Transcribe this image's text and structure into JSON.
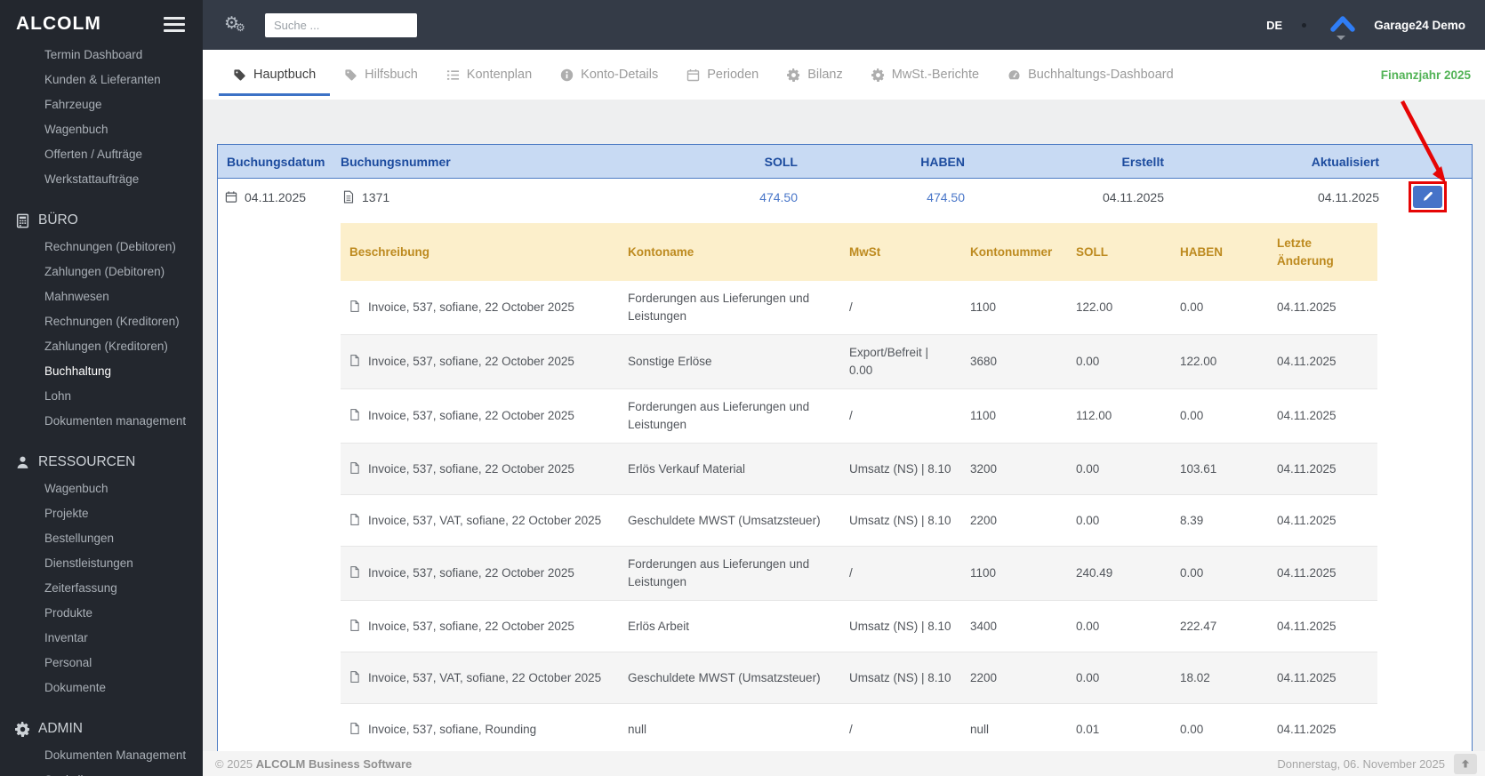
{
  "sidebar": {
    "logo": "ALCOLM",
    "top_items": [
      "Termin Dashboard",
      "Kunden & Lieferanten",
      "Fahrzeuge",
      "Wagenbuch",
      "Offerten / Aufträge",
      "Werkstattaufträge"
    ],
    "sections": [
      {
        "label": "BÜRO",
        "icon": "calculator-icon",
        "items": [
          "Rechnungen (Debitoren)",
          "Zahlungen (Debitoren)",
          "Mahnwesen",
          "Rechnungen (Kreditoren)",
          "Zahlungen (Kreditoren)",
          "Buchhaltung",
          "Lohn",
          "Dokumenten management"
        ],
        "active_item": "Buchhaltung"
      },
      {
        "label": "RESSOURCEN",
        "icon": "user-icon",
        "items": [
          "Wagenbuch",
          "Projekte",
          "Bestellungen",
          "Dienstleistungen",
          "Zeiterfassung",
          "Produkte",
          "Inventar",
          "Personal",
          "Dokumente"
        ]
      },
      {
        "label": "ADMIN",
        "icon": "gear-icon",
        "items": [
          "Dokumenten Management",
          "Statistik"
        ]
      }
    ]
  },
  "topbar": {
    "search_placeholder": "Suche ...",
    "language": "DE",
    "account_name": "Garage24 Demo"
  },
  "tabbar": {
    "tabs": [
      {
        "label": "Hauptbuch",
        "icon": "tag-icon",
        "active": true
      },
      {
        "label": "Hilfsbuch",
        "icon": "tag-icon",
        "active": false
      },
      {
        "label": "Kontenplan",
        "icon": "list-icon",
        "active": false
      },
      {
        "label": "Konto-Details",
        "icon": "info-icon",
        "active": false
      },
      {
        "label": "Perioden",
        "icon": "calendar-icon",
        "active": false
      },
      {
        "label": "Bilanz",
        "icon": "gear-icon",
        "active": false
      },
      {
        "label": "MwSt.-Berichte",
        "icon": "gear-icon",
        "active": false
      },
      {
        "label": "Buchhaltungs-Dashboard",
        "icon": "dashboard-icon",
        "active": false
      }
    ],
    "fiscal_year": "Finanzjahr 2025"
  },
  "ledger": {
    "headers": {
      "date": "Buchungsdatum",
      "number": "Buchungsnummer",
      "debit": "SOLL",
      "credit": "HABEN",
      "created": "Erstellt",
      "updated": "Aktualisiert"
    },
    "entry": {
      "date": "04.11.2025",
      "number": "1371",
      "debit": "474.50",
      "credit": "474.50",
      "created": "04.11.2025",
      "updated": "04.11.2025"
    }
  },
  "details": {
    "headers": [
      "Beschreibung",
      "Kontoname",
      "MwSt",
      "Kontonummer",
      "SOLL",
      "HABEN",
      "Letzte Änderung"
    ],
    "rows": [
      {
        "description": "Invoice, 537, sofiane, 22 October 2025",
        "account": "Forderungen aus Lieferungen und Leistungen",
        "vat": "/",
        "account_no": "1100",
        "debit": "122.00",
        "credit": "0.00",
        "changed": "04.11.2025"
      },
      {
        "description": "Invoice, 537, sofiane, 22 October 2025",
        "account": "Sonstige Erlöse",
        "vat": "Export/Befreit | 0.00",
        "account_no": "3680",
        "debit": "0.00",
        "credit": "122.00",
        "changed": "04.11.2025"
      },
      {
        "description": "Invoice, 537, sofiane, 22 October 2025",
        "account": "Forderungen aus Lieferungen und Leistungen",
        "vat": "/",
        "account_no": "1100",
        "debit": "112.00",
        "credit": "0.00",
        "changed": "04.11.2025"
      },
      {
        "description": "Invoice, 537, sofiane, 22 October 2025",
        "account": "Erlös Verkauf Material",
        "vat": "Umsatz (NS) | 8.10",
        "account_no": "3200",
        "debit": "0.00",
        "credit": "103.61",
        "changed": "04.11.2025"
      },
      {
        "description": "Invoice, 537, VAT, sofiane, 22 October 2025",
        "account": "Geschuldete MWST (Umsatzsteuer)",
        "vat": "Umsatz (NS) | 8.10",
        "account_no": "2200",
        "debit": "0.00",
        "credit": "8.39",
        "changed": "04.11.2025"
      },
      {
        "description": "Invoice, 537, sofiane, 22 October 2025",
        "account": "Forderungen aus Lieferungen und Leistungen",
        "vat": "/",
        "account_no": "1100",
        "debit": "240.49",
        "credit": "0.00",
        "changed": "04.11.2025"
      },
      {
        "description": "Invoice, 537, sofiane, 22 October 2025",
        "account": "Erlös Arbeit",
        "vat": "Umsatz (NS) | 8.10",
        "account_no": "3400",
        "debit": "0.00",
        "credit": "222.47",
        "changed": "04.11.2025"
      },
      {
        "description": "Invoice, 537, VAT, sofiane, 22 October 2025",
        "account": "Geschuldete MWST (Umsatzsteuer)",
        "vat": "Umsatz (NS) | 8.10",
        "account_no": "2200",
        "debit": "0.00",
        "credit": "18.02",
        "changed": "04.11.2025"
      },
      {
        "description": "Invoice, 537, sofiane, Rounding",
        "account": "null",
        "vat": "/",
        "account_no": "null",
        "debit": "0.01",
        "credit": "0.00",
        "changed": "04.11.2025"
      }
    ]
  },
  "footer": {
    "copyright": "© 2025",
    "brand": "ALCOLM Business Software",
    "date": "Donnerstag, 06. November 2025"
  },
  "colors": {
    "accent_blue": "#3c72c6",
    "ledger_header_bg": "#c8daf3",
    "ledger_header_text": "#1c4b9e",
    "detail_header_bg": "#fcefcb",
    "detail_header_text": "#bd8a1f",
    "fiscal_year_green": "#52b356",
    "edit_button_blue": "#4673c8",
    "annotation_red": "#e60505"
  }
}
